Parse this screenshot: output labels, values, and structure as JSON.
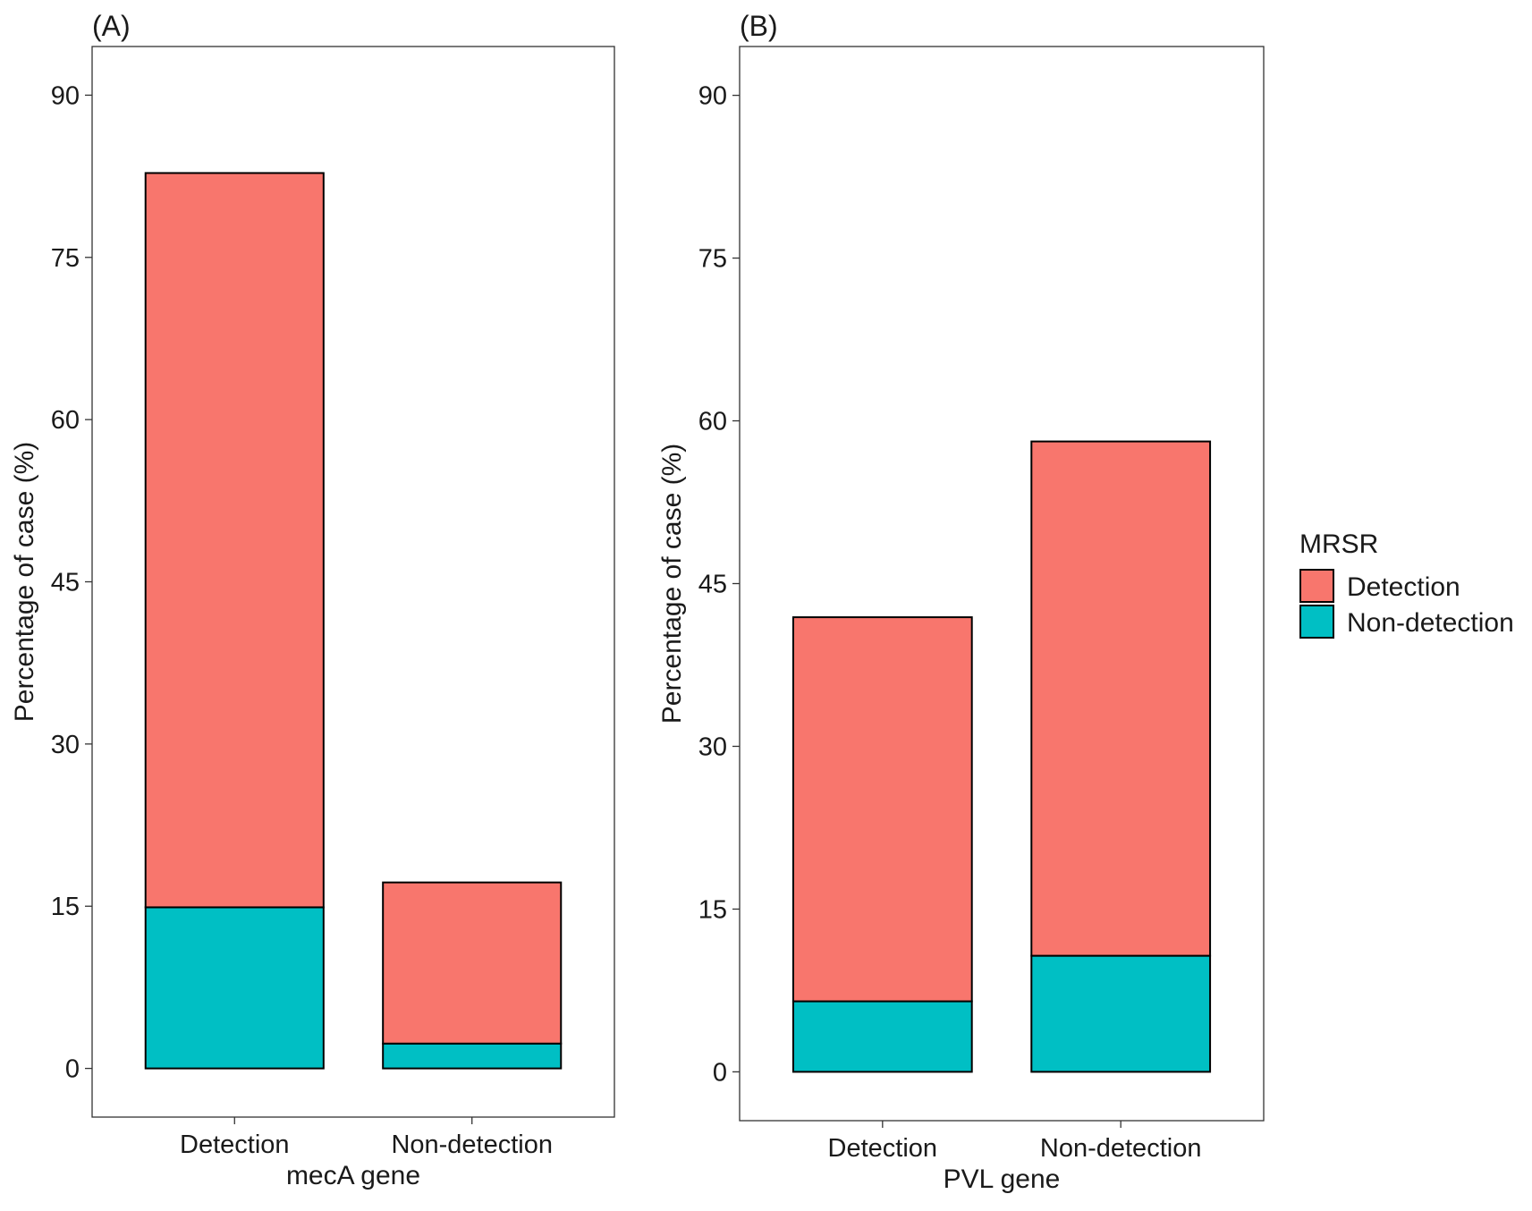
{
  "chart_data": [
    {
      "type": "bar",
      "stacked": true,
      "panel": "(A)",
      "y_label": "Percentage of case (%)",
      "x_label": "mecA gene",
      "categories": [
        "Detection",
        "Non-detection"
      ],
      "series": [
        {
          "name": "Detection",
          "color": "#f8766d",
          "values": [
            67.9,
            14.9
          ]
        },
        {
          "name": "Non-detection",
          "color": "#00bfc4",
          "values": [
            14.9,
            2.3
          ]
        }
      ],
      "ylim": [
        -4.5,
        94.5
      ],
      "yticks": [
        0,
        15,
        30,
        45,
        60,
        75,
        90
      ]
    },
    {
      "type": "bar",
      "stacked": true,
      "panel": "(B)",
      "y_label": "Percentage of case (%)",
      "x_label": "PVL gene",
      "categories": [
        "Detection",
        "Non-detection"
      ],
      "series": [
        {
          "name": "Detection",
          "color": "#f8766d",
          "values": [
            35.4,
            47.4
          ]
        },
        {
          "name": "Non-detection",
          "color": "#00bfc4",
          "values": [
            6.5,
            10.7
          ]
        }
      ],
      "ylim": [
        -4.5,
        94.5
      ],
      "yticks": [
        0,
        15,
        30,
        45,
        60,
        75,
        90
      ],
      "legend_title": "MRSR"
    }
  ]
}
